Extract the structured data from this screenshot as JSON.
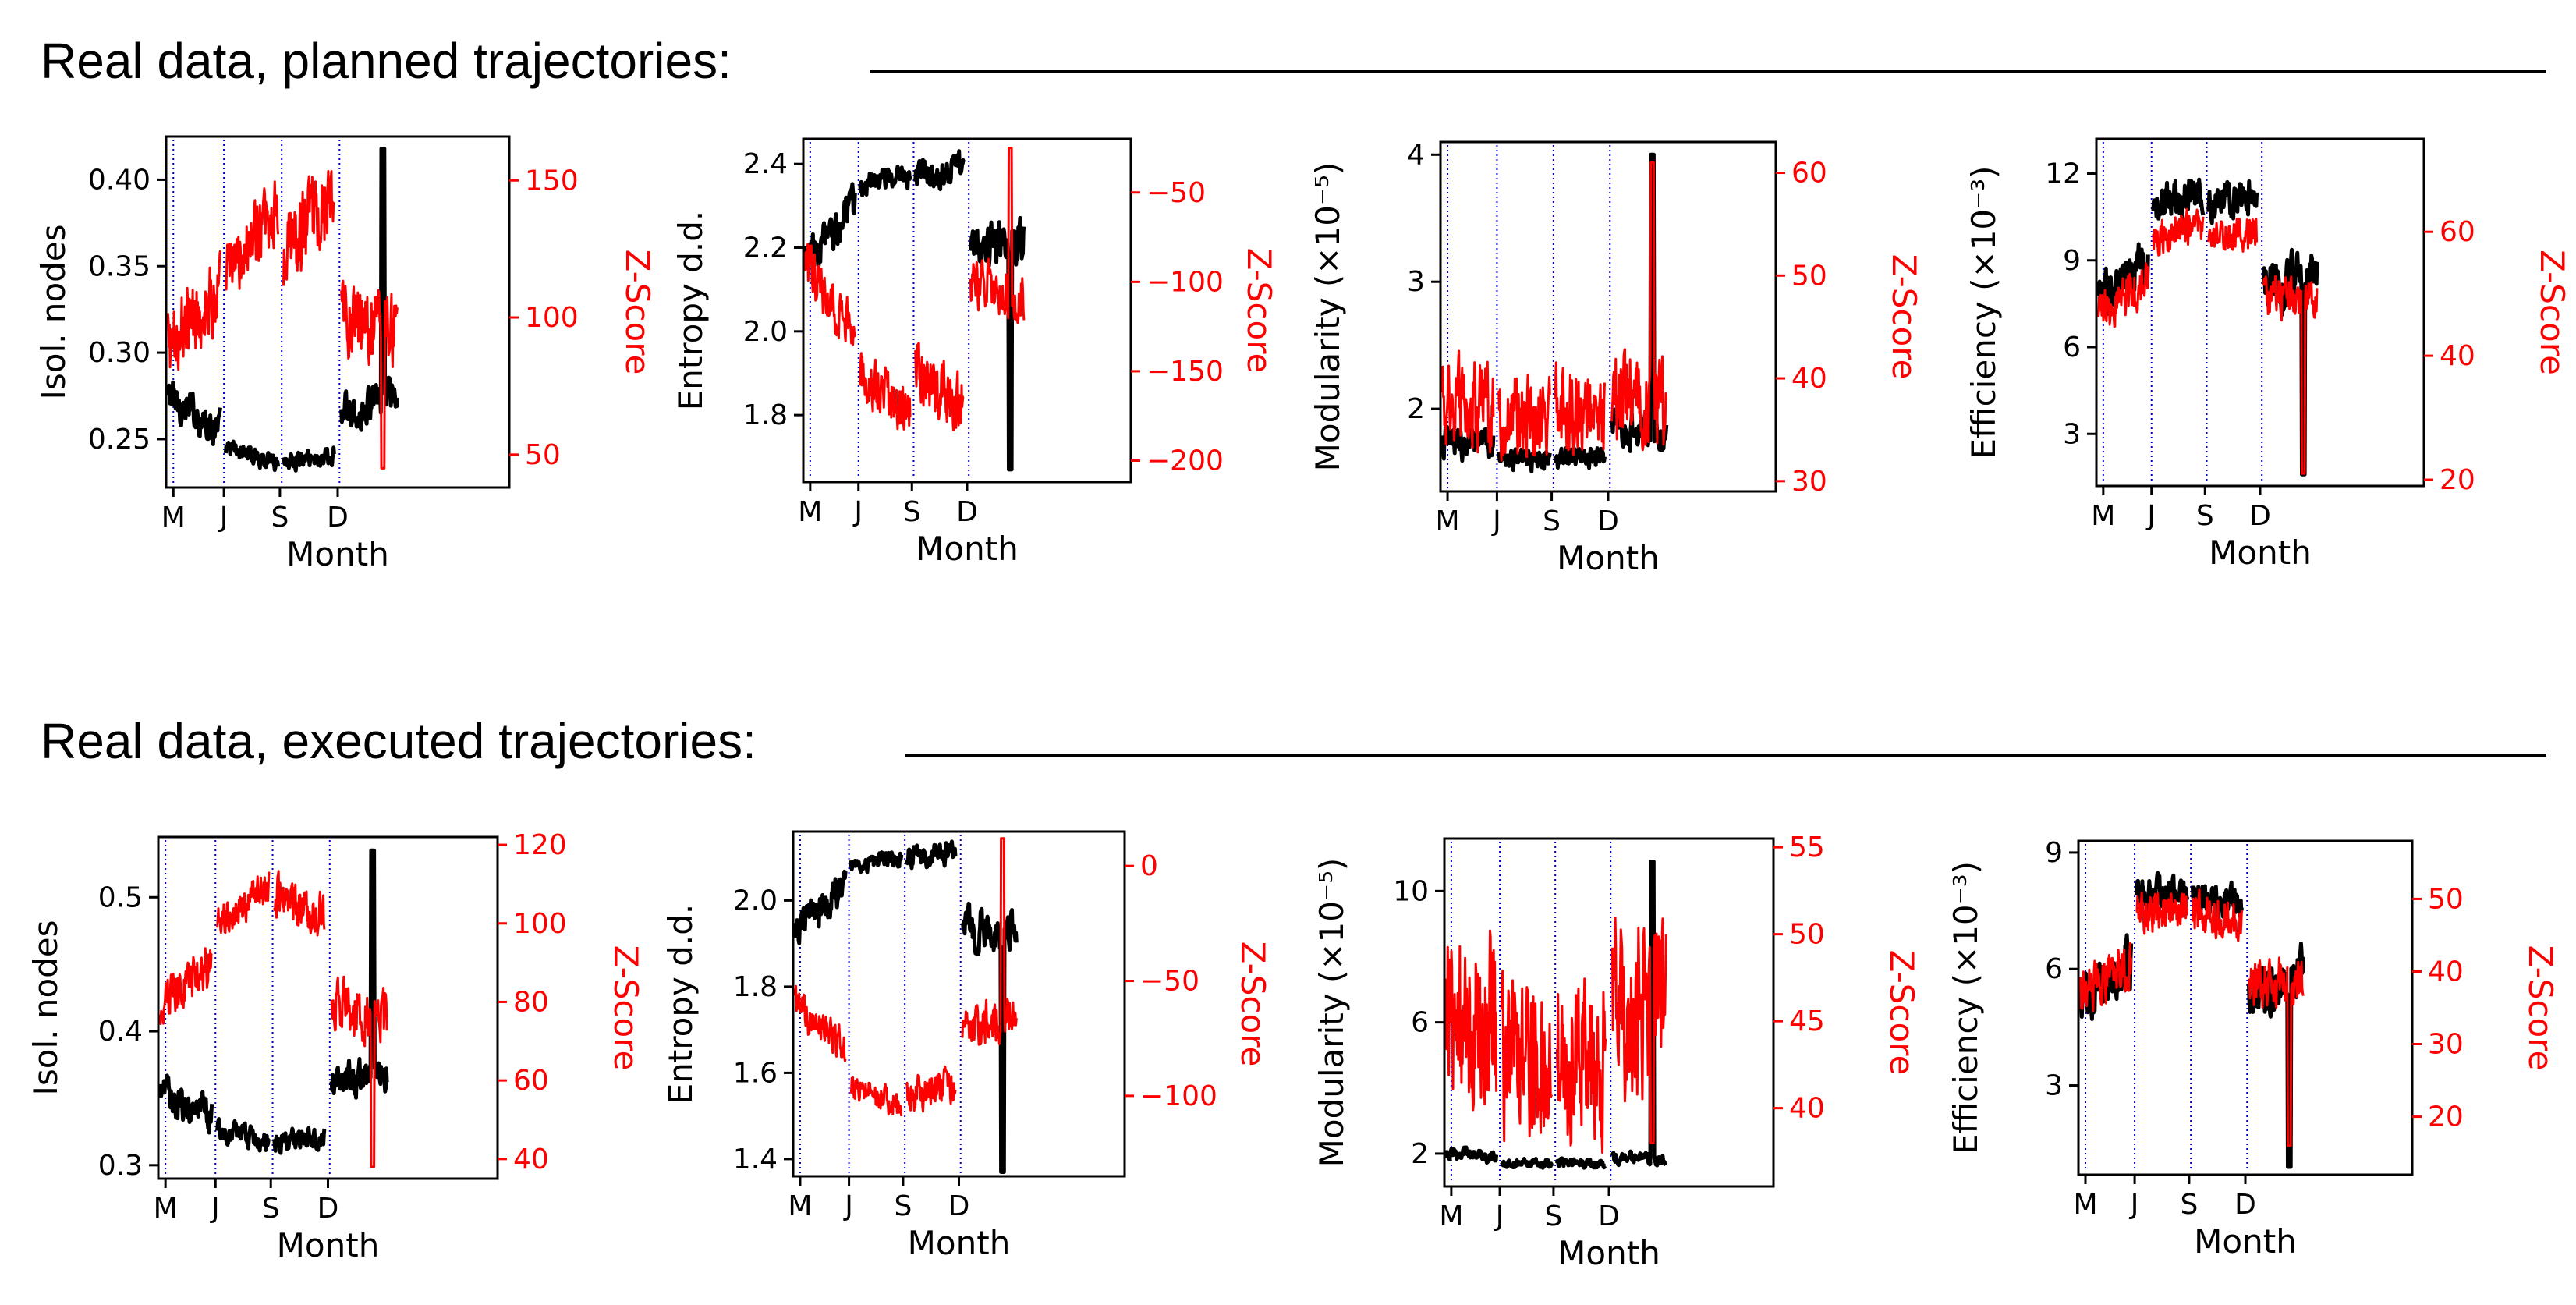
{
  "sections": [
    {
      "title": "Real data, planned trajectories:"
    },
    {
      "title": "Real data, executed trajectories:"
    }
  ],
  "colors": {
    "primary_series": "#000000",
    "zscore_series": "#ff0000",
    "divider": "#0000cc"
  },
  "chart_data": [
    {
      "type": "line",
      "section": 0,
      "ylabel": "Isol. nodes",
      "ylabel2": "Z-Score",
      "xlabel": "Month",
      "xticks": [
        "M",
        "J",
        "S",
        "D"
      ],
      "xlim": [
        0,
        19
      ],
      "ylim": [
        0.222,
        0.425
      ],
      "yticks": [
        0.25,
        0.3,
        0.35,
        0.4
      ],
      "yticklabels": [
        "0.25",
        "0.30",
        "0.35",
        "0.40"
      ],
      "ylim2": [
        38,
        166
      ],
      "yticks2": [
        50,
        100,
        150
      ],
      "yticklabels2": [
        "50",
        "100",
        "150"
      ],
      "segments": [
        {
          "x": [
            0.1,
            3.0
          ],
          "y": [
            0.275,
            0.255
          ],
          "y2": [
            90,
            110
          ],
          "noise": 0.008,
          "noise2": 12
        },
        {
          "x": [
            3.3,
            6.2
          ],
          "y": [
            0.245,
            0.237
          ],
          "y2": [
            115,
            140
          ],
          "noise": 0.004,
          "noise2": 10
        },
        {
          "x": [
            6.5,
            9.3
          ],
          "y": [
            0.237,
            0.24
          ],
          "y2": [
            120,
            145
          ],
          "noise": 0.004,
          "noise2": 14
        },
        {
          "x": [
            9.7,
            12.8
          ],
          "y": [
            0.265,
            0.275
          ],
          "y2": [
            100,
            95
          ],
          "noise": 0.008,
          "noise2": 12
        }
      ],
      "spike": {
        "x": 12.0,
        "y": 0.418,
        "y2": 45
      }
    },
    {
      "type": "line",
      "section": 0,
      "ylabel": "Entropy d.d.",
      "ylabel2": "Z-Score",
      "xlabel": "Month",
      "xticks": [
        "M",
        "J",
        "S",
        "D"
      ],
      "xlim": [
        0,
        19
      ],
      "ylim": [
        1.64,
        2.46
      ],
      "yticks": [
        1.8,
        2.0,
        2.2,
        2.4
      ],
      "yticklabels": [
        "1.8",
        "2.0",
        "2.2",
        "2.4"
      ],
      "ylim2": [
        -212,
        -20
      ],
      "yticks2": [
        -200,
        -150,
        -100,
        -50
      ],
      "yticklabels2": [
        "−200",
        "−150",
        "−100",
        "−50"
      ],
      "segments": [
        {
          "x": [
            0.1,
            3.0
          ],
          "y": [
            2.16,
            2.3
          ],
          "y2": [
            -90,
            -130
          ],
          "noise": 0.035,
          "noise2": 12
        },
        {
          "x": [
            3.3,
            6.2
          ],
          "y": [
            2.35,
            2.38
          ],
          "y2": [
            -150,
            -175
          ],
          "noise": 0.02,
          "noise2": 12
        },
        {
          "x": [
            6.5,
            9.3
          ],
          "y": [
            2.37,
            2.4
          ],
          "y2": [
            -150,
            -170
          ],
          "noise": 0.025,
          "noise2": 14
        },
        {
          "x": [
            9.7,
            12.8
          ],
          "y": [
            2.2,
            2.22
          ],
          "y2": [
            -100,
            -110
          ],
          "noise": 0.04,
          "noise2": 12
        }
      ],
      "spike": {
        "x": 12.0,
        "y": 1.67,
        "y2": -25
      }
    },
    {
      "type": "line",
      "section": 0,
      "ylabel": "Modularity (×10⁻⁵)",
      "ylabel2": "Z-Score",
      "xlabel": "Month",
      "xticks": [
        "M",
        "J",
        "S",
        "D"
      ],
      "xlim": [
        0,
        19
      ],
      "ylim": [
        1.35,
        4.1
      ],
      "yticks": [
        2,
        3,
        4
      ],
      "yticklabels": [
        "2",
        "3",
        "4"
      ],
      "ylim2": [
        29,
        63
      ],
      "yticks2": [
        30,
        40,
        50,
        60
      ],
      "yticklabels2": [
        "30",
        "40",
        "50",
        "60"
      ],
      "segments": [
        {
          "x": [
            0.1,
            3.0
          ],
          "y": [
            1.75,
            1.7
          ],
          "y2": [
            38,
            37
          ],
          "noise": 0.1,
          "noise2": 4
        },
        {
          "x": [
            3.3,
            6.2
          ],
          "y": [
            1.62,
            1.6
          ],
          "y2": [
            36,
            37
          ],
          "noise": 0.06,
          "noise2": 3.5
        },
        {
          "x": [
            6.5,
            9.3
          ],
          "y": [
            1.6,
            1.62
          ],
          "y2": [
            37,
            37
          ],
          "noise": 0.06,
          "noise2": 3.5
        },
        {
          "x": [
            9.7,
            12.8
          ],
          "y": [
            1.85,
            1.8
          ],
          "y2": [
            38,
            38
          ],
          "noise": 0.1,
          "noise2": 4
        }
      ],
      "spike": {
        "x": 12.0,
        "y": 4.0,
        "y2": 61
      }
    },
    {
      "type": "line",
      "section": 0,
      "ylabel": "Efficiency (×10⁻³)",
      "ylabel2": "Z-Score",
      "xlabel": "Month",
      "xticks": [
        "M",
        "J",
        "S",
        "D"
      ],
      "xlim": [
        0,
        19
      ],
      "ylim": [
        1.2,
        13.2
      ],
      "yticks": [
        3,
        6,
        9,
        12
      ],
      "yticklabels": [
        "3",
        "6",
        "9",
        "12"
      ],
      "ylim2": [
        19,
        75
      ],
      "yticks2": [
        20,
        40,
        60
      ],
      "yticklabels2": [
        "20",
        "40",
        "60"
      ],
      "segments": [
        {
          "x": [
            0.1,
            3.0
          ],
          "y": [
            7.5,
            9.0
          ],
          "y2": [
            47,
            52
          ],
          "noise": 0.6,
          "noise2": 3
        },
        {
          "x": [
            3.3,
            6.2
          ],
          "y": [
            11.0,
            11.3
          ],
          "y2": [
            59,
            61
          ],
          "noise": 0.5,
          "noise2": 2.5
        },
        {
          "x": [
            6.5,
            9.3
          ],
          "y": [
            11.0,
            11.2
          ],
          "y2": [
            59,
            60
          ],
          "noise": 0.5,
          "noise2": 2.5
        },
        {
          "x": [
            9.7,
            12.8
          ],
          "y": [
            8.0,
            8.5
          ],
          "y2": [
            49,
            50
          ],
          "noise": 0.7,
          "noise2": 3
        }
      ],
      "spike": {
        "x": 12.0,
        "y": 1.6,
        "y2": 21
      }
    },
    {
      "type": "line",
      "section": 1,
      "ylabel": "Isol. nodes",
      "ylabel2": "Z-Score",
      "xlabel": "Month",
      "xticks": [
        "M",
        "J",
        "S",
        "D"
      ],
      "xlim": [
        0,
        19
      ],
      "ylim": [
        0.29,
        0.545
      ],
      "yticks": [
        0.3,
        0.4,
        0.5
      ],
      "yticklabels": [
        "0.3",
        "0.4",
        "0.5"
      ],
      "ylim2": [
        35,
        122
      ],
      "yticks2": [
        40,
        60,
        80,
        100,
        120
      ],
      "yticklabels2": [
        "40",
        "60",
        "80",
        "100",
        "120"
      ],
      "segments": [
        {
          "x": [
            0.1,
            3.0
          ],
          "y": [
            0.355,
            0.335
          ],
          "y2": [
            80,
            90
          ],
          "noise": 0.01,
          "noise2": 5
        },
        {
          "x": [
            3.3,
            6.2
          ],
          "y": [
            0.325,
            0.318
          ],
          "y2": [
            100,
            110
          ],
          "noise": 0.006,
          "noise2": 4
        },
        {
          "x": [
            6.5,
            9.3
          ],
          "y": [
            0.318,
            0.32
          ],
          "y2": [
            108,
            102
          ],
          "noise": 0.006,
          "noise2": 5
        },
        {
          "x": [
            9.7,
            12.8
          ],
          "y": [
            0.36,
            0.37
          ],
          "y2": [
            80,
            75
          ],
          "noise": 0.01,
          "noise2": 6
        }
      ],
      "spike": {
        "x": 12.0,
        "y": 0.535,
        "y2": 38
      }
    },
    {
      "type": "line",
      "section": 1,
      "ylabel": "Entropy d.d.",
      "ylabel2": "Z-Score",
      "xlabel": "Month",
      "xticks": [
        "M",
        "J",
        "S",
        "D"
      ],
      "xlim": [
        0,
        19
      ],
      "ylim": [
        1.36,
        2.16
      ],
      "yticks": [
        1.4,
        1.6,
        1.8,
        2.0
      ],
      "yticklabels": [
        "1.4",
        "1.6",
        "1.8",
        "2.0"
      ],
      "ylim2": [
        -135,
        15
      ],
      "yticks2": [
        -100,
        -50,
        0
      ],
      "yticklabels2": [
        "−100",
        "−50",
        "0"
      ],
      "segments": [
        {
          "x": [
            0.1,
            3.0
          ],
          "y": [
            1.93,
            2.03
          ],
          "y2": [
            -60,
            -80
          ],
          "noise": 0.03,
          "noise2": 7
        },
        {
          "x": [
            3.3,
            6.2
          ],
          "y": [
            2.08,
            2.1
          ],
          "y2": [
            -95,
            -105
          ],
          "noise": 0.015,
          "noise2": 5
        },
        {
          "x": [
            6.5,
            9.3
          ],
          "y": [
            2.1,
            2.11
          ],
          "y2": [
            -100,
            -95
          ],
          "noise": 0.02,
          "noise2": 7
        },
        {
          "x": [
            9.7,
            12.8
          ],
          "y": [
            1.94,
            1.93
          ],
          "y2": [
            -70,
            -65
          ],
          "noise": 0.035,
          "noise2": 8
        }
      ],
      "spike": {
        "x": 12.0,
        "y": 1.37,
        "y2": 12
      }
    },
    {
      "type": "line",
      "section": 1,
      "ylabel": "Modularity (×10⁻⁵)",
      "ylabel2": "Z-Score",
      "xlabel": "Month",
      "xticks": [
        "M",
        "J",
        "S",
        "D"
      ],
      "xlim": [
        0,
        19
      ],
      "ylim": [
        1.0,
        11.6
      ],
      "yticks": [
        2,
        6,
        10
      ],
      "yticklabels": [
        "2",
        "6",
        "10"
      ],
      "ylim2": [
        35.5,
        55.5
      ],
      "yticks2": [
        40,
        45,
        50,
        55
      ],
      "yticklabels2": [
        "40",
        "45",
        "50",
        "55"
      ],
      "segments": [
        {
          "x": [
            0.1,
            3.0
          ],
          "y": [
            2.0,
            1.9
          ],
          "y2": [
            45,
            45
          ],
          "noise": 0.15,
          "noise2": 4.5
        },
        {
          "x": [
            3.3,
            6.2
          ],
          "y": [
            1.7,
            1.7
          ],
          "y2": [
            43,
            43
          ],
          "noise": 0.1,
          "noise2": 4
        },
        {
          "x": [
            6.5,
            9.3
          ],
          "y": [
            1.7,
            1.7
          ],
          "y2": [
            43,
            43
          ],
          "noise": 0.1,
          "noise2": 4
        },
        {
          "x": [
            9.7,
            12.8
          ],
          "y": [
            1.9,
            1.8
          ],
          "y2": [
            46,
            46
          ],
          "noise": 0.15,
          "noise2": 4.5
        }
      ],
      "spike": {
        "x": 12.0,
        "y": 10.9,
        "y2": 38
      }
    },
    {
      "type": "line",
      "section": 1,
      "ylabel": "Efficiency (×10⁻³)",
      "ylabel2": "Z-Score",
      "xlabel": "Month",
      "xticks": [
        "M",
        "J",
        "S",
        "D"
      ],
      "xlim": [
        0,
        19
      ],
      "ylim": [
        0.7,
        9.3
      ],
      "yticks": [
        3,
        6,
        9
      ],
      "yticklabels": [
        "3",
        "6",
        "9"
      ],
      "ylim2": [
        12,
        58
      ],
      "yticks2": [
        20,
        30,
        40,
        50
      ],
      "yticklabels2": [
        "20",
        "30",
        "40",
        "50"
      ],
      "segments": [
        {
          "x": [
            0.1,
            3.0
          ],
          "y": [
            5.2,
            6.2
          ],
          "y2": [
            37,
            41
          ],
          "noise": 0.5,
          "noise2": 3
        },
        {
          "x": [
            3.3,
            6.2
          ],
          "y": [
            7.8,
            8.0
          ],
          "y2": [
            48,
            49
          ],
          "noise": 0.35,
          "noise2": 2.5
        },
        {
          "x": [
            6.5,
            9.3
          ],
          "y": [
            7.8,
            7.7
          ],
          "y2": [
            48,
            47
          ],
          "noise": 0.35,
          "noise2": 2.5
        },
        {
          "x": [
            9.7,
            12.8
          ],
          "y": [
            5.5,
            5.8
          ],
          "y2": [
            38,
            39
          ],
          "noise": 0.5,
          "noise2": 3
        }
      ],
      "spike": {
        "x": 12.0,
        "y": 0.9,
        "y2": 16
      }
    }
  ]
}
